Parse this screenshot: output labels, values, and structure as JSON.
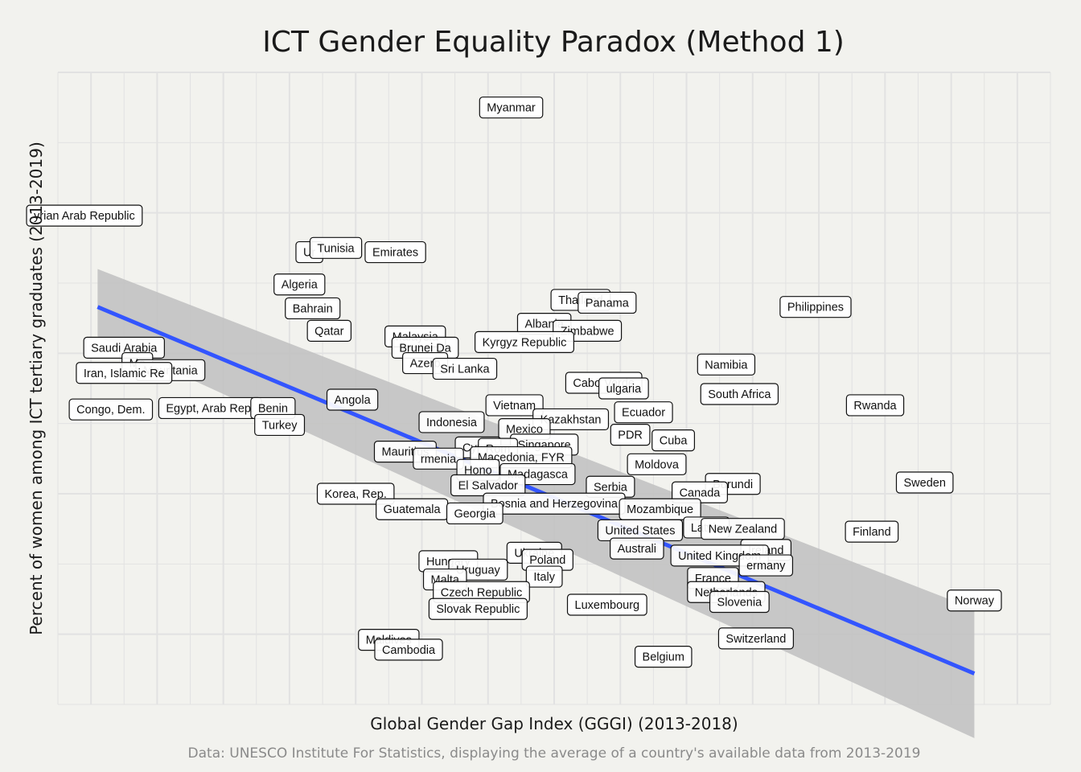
{
  "chart_data": {
    "type": "scatter",
    "title": "ICT Gender Equality Paradox (Method 1)",
    "xlabel": "Global Gender Gap Index (GGGI) (2013-2018)",
    "ylabel": "Percent of women among ICT tertiary graduates (2013-2019)",
    "caption": "Data: UNESCO Institute For Statistics, displaying the average of a country's available data from 2013-2019",
    "grid": true,
    "legend": "none",
    "trend_line": {
      "start_y": 43.3,
      "end_y": 17.2,
      "color": "#3355ff"
    },
    "confidence_band": {
      "start_lower": 41.2,
      "start_upper": 46.0,
      "end_lower": 12.6,
      "end_upper": 21.8,
      "color": "#bfbfbf"
    },
    "points": [
      {
        "label": "Myanmar",
        "x": 0.697,
        "y": 57.5
      },
      {
        "label": "yrian Arab Republic",
        "x": 0.568,
        "y": 49.8
      },
      {
        "label": "Ur",
        "x": 0.636,
        "y": 47.2
      },
      {
        "label": "Emirates",
        "x": 0.662,
        "y": 47.2
      },
      {
        "label": "Tunisia",
        "x": 0.644,
        "y": 47.5
      },
      {
        "label": "Algeria",
        "x": 0.633,
        "y": 44.9
      },
      {
        "label": "Bahrain",
        "x": 0.637,
        "y": 43.2
      },
      {
        "label": "Qatar",
        "x": 0.642,
        "y": 41.6
      },
      {
        "label": "Thailand",
        "x": 0.718,
        "y": 43.8
      },
      {
        "label": "Panama",
        "x": 0.726,
        "y": 43.6
      },
      {
        "label": "Philippines",
        "x": 0.789,
        "y": 43.3
      },
      {
        "label": "Albania",
        "x": 0.707,
        "y": 42.1
      },
      {
        "label": "Zimbabwe",
        "x": 0.72,
        "y": 41.6
      },
      {
        "label": "Malaysia",
        "x": 0.668,
        "y": 41.2
      },
      {
        "label": "Kyrgyz Republic",
        "x": 0.701,
        "y": 40.8
      },
      {
        "label": "Brunei Da",
        "x": 0.671,
        "y": 40.4
      },
      {
        "label": "Saudi Arabia",
        "x": 0.58,
        "y": 40.4
      },
      {
        "label": "Mo",
        "x": 0.584,
        "y": 39.3
      },
      {
        "label": "Azerb",
        "x": 0.671,
        "y": 39.3
      },
      {
        "label": "Mauritania",
        "x": 0.594,
        "y": 38.8
      },
      {
        "label": "Iran, Islamic Re",
        "x": 0.58,
        "y": 38.6
      },
      {
        "label": "Sri Lanka",
        "x": 0.683,
        "y": 38.9
      },
      {
        "label": "Namibia",
        "x": 0.762,
        "y": 39.2
      },
      {
        "label": "Cabo Verde",
        "x": 0.725,
        "y": 37.9
      },
      {
        "label": "ulgaria",
        "x": 0.731,
        "y": 37.5
      },
      {
        "label": "South Africa",
        "x": 0.766,
        "y": 37.1
      },
      {
        "label": "Angola",
        "x": 0.649,
        "y": 36.7
      },
      {
        "label": "Vietnam",
        "x": 0.698,
        "y": 36.3
      },
      {
        "label": "Rwanda",
        "x": 0.807,
        "y": 36.3
      },
      {
        "label": "Congo, Dem.",
        "x": 0.576,
        "y": 36.0
      },
      {
        "label": "Egypt, Arab Rep.",
        "x": 0.606,
        "y": 36.1
      },
      {
        "label": "Benin",
        "x": 0.625,
        "y": 36.1
      },
      {
        "label": "Ecuador",
        "x": 0.737,
        "y": 35.8
      },
      {
        "label": "Kazakhstan",
        "x": 0.715,
        "y": 35.3
      },
      {
        "label": "Indonesia",
        "x": 0.679,
        "y": 35.1
      },
      {
        "label": "Mexico",
        "x": 0.701,
        "y": 34.6
      },
      {
        "label": "Turkey",
        "x": 0.627,
        "y": 34.9
      },
      {
        "label": "PDR",
        "x": 0.733,
        "y": 34.2
      },
      {
        "label": "Cuba",
        "x": 0.746,
        "y": 33.8
      },
      {
        "label": "Singapore",
        "x": 0.707,
        "y": 33.5
      },
      {
        "label": "Cypru",
        "x": 0.687,
        "y": 33.3
      },
      {
        "label": "Rom",
        "x": 0.693,
        "y": 33.2
      },
      {
        "label": "Macedonia, FYR",
        "x": 0.7,
        "y": 32.6
      },
      {
        "label": "Mauritius",
        "x": 0.665,
        "y": 33.0
      },
      {
        "label": "rmenia",
        "x": 0.675,
        "y": 32.5
      },
      {
        "label": "Moldova",
        "x": 0.741,
        "y": 32.1
      },
      {
        "label": "Hono",
        "x": 0.687,
        "y": 31.7
      },
      {
        "label": "Madagasca",
        "x": 0.705,
        "y": 31.4
      },
      {
        "label": "Sweden",
        "x": 0.822,
        "y": 30.8
      },
      {
        "label": "El Salvador",
        "x": 0.69,
        "y": 30.6
      },
      {
        "label": "Serbia",
        "x": 0.727,
        "y": 30.5
      },
      {
        "label": "Burundi",
        "x": 0.764,
        "y": 30.7
      },
      {
        "label": "Canada",
        "x": 0.754,
        "y": 30.1
      },
      {
        "label": "Korea, Rep.",
        "x": 0.65,
        "y": 30.0
      },
      {
        "label": "Bosnia and Herzegovina",
        "x": 0.71,
        "y": 29.3
      },
      {
        "label": "Guatemala",
        "x": 0.667,
        "y": 28.9
      },
      {
        "label": "Georgia",
        "x": 0.686,
        "y": 28.6
      },
      {
        "label": "Mozambique",
        "x": 0.742,
        "y": 28.9
      },
      {
        "label": "Latvia",
        "x": 0.756,
        "y": 27.6
      },
      {
        "label": "United States",
        "x": 0.736,
        "y": 27.4
      },
      {
        "label": "New Zealand",
        "x": 0.767,
        "y": 27.5
      },
      {
        "label": "Finland",
        "x": 0.806,
        "y": 27.3
      },
      {
        "label": "Ireland",
        "x": 0.774,
        "y": 26.0
      },
      {
        "label": "Australi",
        "x": 0.735,
        "y": 26.1
      },
      {
        "label": "United Kingdom",
        "x": 0.76,
        "y": 25.6
      },
      {
        "label": "Ukraine",
        "x": 0.704,
        "y": 25.8
      },
      {
        "label": "Hungary",
        "x": 0.678,
        "y": 25.2
      },
      {
        "label": "Poland",
        "x": 0.708,
        "y": 25.3
      },
      {
        "label": "ermany",
        "x": 0.774,
        "y": 24.9
      },
      {
        "label": "Uruguay",
        "x": 0.687,
        "y": 24.6
      },
      {
        "label": "Italy",
        "x": 0.707,
        "y": 24.1
      },
      {
        "label": "Malta",
        "x": 0.677,
        "y": 23.9
      },
      {
        "label": "France",
        "x": 0.758,
        "y": 24.0
      },
      {
        "label": "Norway",
        "x": 0.837,
        "y": 22.4
      },
      {
        "label": "Czech Republic",
        "x": 0.688,
        "y": 23.0
      },
      {
        "label": "Netherlands",
        "x": 0.762,
        "y": 23.0
      },
      {
        "label": "Slovenia",
        "x": 0.766,
        "y": 22.3
      },
      {
        "label": "Luxembourg",
        "x": 0.726,
        "y": 22.1
      },
      {
        "label": "Slovak Republic",
        "x": 0.687,
        "y": 21.8
      },
      {
        "label": "Switzerland",
        "x": 0.771,
        "y": 19.7
      },
      {
        "label": "Maldives",
        "x": 0.66,
        "y": 19.6
      },
      {
        "label": "Cambodia",
        "x": 0.666,
        "y": 18.9
      },
      {
        "label": "Belgium",
        "x": 0.743,
        "y": 18.4
      }
    ]
  }
}
